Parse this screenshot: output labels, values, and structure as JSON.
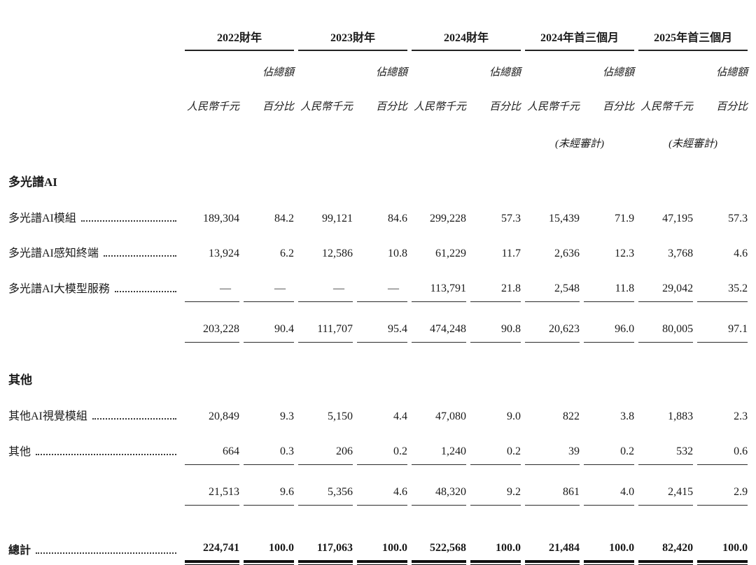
{
  "colors": {
    "text": "#1a1a1a",
    "rule": "#222222"
  },
  "table": {
    "headers": {
      "share": "佔總額",
      "amount": "人民幣千元",
      "percent": "百分比"
    },
    "periods": [
      {
        "label": "2022財年",
        "unaudited": ""
      },
      {
        "label": "2023財年",
        "unaudited": ""
      },
      {
        "label": "2024財年",
        "unaudited": ""
      },
      {
        "label": "2024年首三個月",
        "unaudited": "(未經審計)"
      },
      {
        "label": "2025年首三個月",
        "unaudited": "(未經審計)"
      }
    ],
    "sections": [
      {
        "title": "多光譜AI",
        "rows": [
          {
            "label": "多光譜AI模組",
            "underline": false,
            "values": [
              "189,304",
              "84.2",
              "99,121",
              "84.6",
              "299,228",
              "57.3",
              "15,439",
              "71.9",
              "47,195",
              "57.3"
            ]
          },
          {
            "label": "多光譜AI感知終端",
            "underline": false,
            "values": [
              "13,924",
              "6.2",
              "12,586",
              "10.8",
              "61,229",
              "11.7",
              "2,636",
              "12.3",
              "3,768",
              "4.6"
            ]
          },
          {
            "label": "多光譜AI大模型服務",
            "underline": true,
            "values": [
              "—",
              "—",
              "—",
              "—",
              "113,791",
              "21.8",
              "2,548",
              "11.8",
              "29,042",
              "35.2"
            ]
          }
        ],
        "subtotal": [
          "203,228",
          "90.4",
          "111,707",
          "95.4",
          "474,248",
          "90.8",
          "20,623",
          "96.0",
          "80,005",
          "97.1"
        ]
      },
      {
        "title": "其他",
        "rows": [
          {
            "label": "其他AI視覺模組",
            "underline": false,
            "values": [
              "20,849",
              "9.3",
              "5,150",
              "4.4",
              "47,080",
              "9.0",
              "822",
              "3.8",
              "1,883",
              "2.3"
            ]
          },
          {
            "label": "其他",
            "underline": true,
            "values": [
              "664",
              "0.3",
              "206",
              "0.2",
              "1,240",
              "0.2",
              "39",
              "0.2",
              "532",
              "0.6"
            ]
          }
        ],
        "subtotal": [
          "21,513",
          "9.6",
          "5,356",
          "4.6",
          "48,320",
          "9.2",
          "861",
          "4.0",
          "2,415",
          "2.9"
        ]
      }
    ],
    "total": {
      "label": "總計",
      "values": [
        "224,741",
        "100.0",
        "117,063",
        "100.0",
        "522,568",
        "100.0",
        "21,484",
        "100.0",
        "82,420",
        "100.0"
      ]
    }
  }
}
